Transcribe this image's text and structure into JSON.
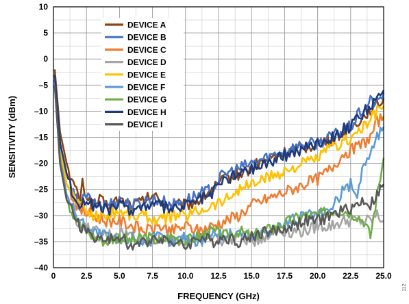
{
  "figure_id": "112",
  "chart_data": {
    "type": "line",
    "xlabel": "FREQUENCY (GHz)",
    "ylabel": "SENSITIVITY (dBm)",
    "xlim": [
      0,
      25
    ],
    "ylim": [
      -40,
      10
    ],
    "x_ticks": [
      "0",
      "2.5",
      "5.0",
      "7.5",
      "10.0",
      "12.5",
      "15.0",
      "17.5",
      "20.0",
      "22.5",
      "25.0"
    ],
    "y_ticks": [
      "10",
      "5",
      "0",
      "–5",
      "–10",
      "–15",
      "–20",
      "–25",
      "–30",
      "–35",
      "–40"
    ],
    "grid": true,
    "legend_position": "top-left",
    "series": [
      {
        "name": "DEVICE A",
        "color": "#8B4513",
        "x": [
          0.1,
          0.5,
          1.0,
          1.5,
          2.0,
          2.2,
          2.5,
          3.0,
          3.5,
          4.0,
          5.0,
          6.0,
          7.0,
          7.5,
          8.0,
          9.0,
          10.0,
          11.0,
          12.0,
          12.5,
          13.0,
          14.0,
          15.0,
          15.5,
          16.0,
          17.0,
          17.5,
          18.0,
          19.0,
          20.0,
          21.0,
          22.0,
          22.5,
          23.0,
          23.5,
          24.0,
          24.5,
          25.0
        ],
        "y": [
          -2,
          -14,
          -20,
          -24,
          -27,
          -24,
          -26,
          -28,
          -27,
          -28,
          -27,
          -28,
          -27,
          -26,
          -27,
          -28,
          -28,
          -27,
          -25,
          -24,
          -23,
          -22,
          -21,
          -20,
          -19.5,
          -18.5,
          -18,
          -17.5,
          -17,
          -16,
          -15.5,
          -14,
          -13.5,
          -12,
          -11,
          -9.5,
          -9,
          -7.5
        ]
      },
      {
        "name": "DEVICE B",
        "color": "#4472C4",
        "x": [
          0.1,
          0.5,
          1.0,
          1.5,
          2.0,
          2.5,
          3.0,
          4.0,
          5.0,
          6.0,
          7.0,
          8.0,
          9.0,
          10.0,
          11.0,
          12.0,
          12.5,
          13.0,
          14.0,
          15.0,
          16.0,
          17.0,
          17.5,
          18.0,
          19.0,
          20.0,
          21.0,
          22.0,
          22.5,
          23.0,
          24.0,
          24.5,
          25.0
        ],
        "y": [
          -3,
          -16,
          -22,
          -26,
          -28,
          -26,
          -28,
          -28,
          -27,
          -28,
          -27,
          -27,
          -28,
          -27,
          -26,
          -25,
          -23,
          -22,
          -21,
          -20,
          -19,
          -18,
          -17.5,
          -17,
          -16.5,
          -16,
          -15,
          -13.5,
          -13,
          -11,
          -8,
          -8.5,
          -6.5
        ]
      },
      {
        "name": "DEVICE C",
        "color": "#ED7D31",
        "x": [
          0.1,
          0.5,
          1.0,
          2.0,
          3.0,
          4.0,
          5.0,
          6.0,
          7.0,
          8.0,
          9.0,
          10.0,
          11.0,
          12.0,
          13.0,
          14.0,
          15.0,
          16.0,
          17.0,
          18.0,
          19.0,
          20.0,
          21.0,
          22.0,
          23.0,
          24.0,
          24.5,
          25.0
        ],
        "y": [
          -4,
          -18,
          -24,
          -29,
          -30,
          -31,
          -31,
          -32,
          -33,
          -32,
          -33,
          -32,
          -33,
          -32,
          -31,
          -30,
          -28,
          -27,
          -26,
          -25,
          -24,
          -23,
          -21,
          -18,
          -17,
          -15,
          -12,
          -11
        ]
      },
      {
        "name": "DEVICE D",
        "color": "#A5A5A5",
        "x": [
          0.1,
          0.5,
          1.0,
          2.0,
          3.0,
          4.0,
          5.0,
          6.0,
          7.0,
          8.0,
          9.0,
          10.0,
          11.0,
          12.0,
          13.0,
          14.0,
          15.0,
          16.0,
          17.0,
          18.0,
          19.0,
          20.0,
          21.0,
          22.0,
          23.0,
          24.0,
          24.5,
          25.0
        ],
        "y": [
          -5,
          -20,
          -27,
          -32,
          -33,
          -34,
          -33,
          -34,
          -35,
          -34,
          -35,
          -34,
          -35,
          -34,
          -35,
          -34,
          -35,
          -34,
          -33,
          -33,
          -33,
          -32,
          -32,
          -31,
          -31,
          -31,
          -30,
          -31
        ]
      },
      {
        "name": "DEVICE E",
        "color": "#FFC000",
        "x": [
          0.1,
          0.5,
          1.0,
          2.0,
          3.0,
          4.0,
          5.0,
          6.0,
          7.0,
          8.0,
          9.0,
          10.0,
          11.0,
          12.0,
          13.0,
          14.0,
          15.0,
          16.0,
          17.0,
          18.0,
          19.0,
          20.0,
          21.0,
          22.0,
          23.0,
          24.0,
          24.5,
          25.0
        ],
        "y": [
          -3,
          -17,
          -24,
          -28,
          -30,
          -30,
          -29,
          -30,
          -30,
          -31,
          -30,
          -30,
          -29,
          -28,
          -27,
          -25,
          -24,
          -23,
          -22,
          -21,
          -20,
          -19,
          -17,
          -16,
          -14,
          -12,
          -10,
          -9
        ]
      },
      {
        "name": "DEVICE F",
        "color": "#5B9BD5",
        "x": [
          0.1,
          0.5,
          1.0,
          2.0,
          3.0,
          4.0,
          5.0,
          6.0,
          7.0,
          8.0,
          9.0,
          10.0,
          11.0,
          12.0,
          13.0,
          14.0,
          15.0,
          16.0,
          17.0,
          18.0,
          19.0,
          20.0,
          21.0,
          22.0,
          22.5,
          23.0,
          23.5,
          24.0,
          24.5,
          25.0
        ],
        "y": [
          -4,
          -19,
          -26,
          -31,
          -33,
          -34,
          -35,
          -34,
          -35,
          -34,
          -35,
          -34,
          -35,
          -33,
          -34,
          -33,
          -34,
          -33,
          -32,
          -31,
          -30,
          -30,
          -29,
          -25,
          -24,
          -26,
          -20,
          -18,
          -15,
          -13
        ]
      },
      {
        "name": "DEVICE G",
        "color": "#70AD47",
        "x": [
          0.1,
          0.5,
          1.0,
          2.0,
          3.0,
          4.0,
          5.0,
          6.0,
          7.0,
          8.0,
          9.0,
          10.0,
          11.0,
          12.0,
          13.0,
          14.0,
          15.0,
          16.0,
          17.0,
          18.0,
          19.0,
          20.0,
          21.0,
          22.0,
          23.0,
          23.5,
          24.0,
          24.5,
          25.0
        ],
        "y": [
          -5,
          -20,
          -27,
          -32,
          -34,
          -35,
          -34,
          -35,
          -34,
          -35,
          -34,
          -35,
          -34,
          -33,
          -34,
          -33,
          -34,
          -33,
          -32,
          -31,
          -30,
          -30,
          -29,
          -29,
          -30,
          -31,
          -34,
          -26,
          -19
        ]
      },
      {
        "name": "DEVICE H",
        "color": "#1F3A7A",
        "x": [
          0.1,
          0.5,
          1.0,
          1.5,
          2.0,
          2.5,
          3.0,
          4.0,
          5.0,
          6.0,
          7.0,
          8.0,
          9.0,
          10.0,
          11.0,
          12.0,
          12.5,
          13.0,
          14.0,
          15.0,
          16.0,
          17.0,
          18.0,
          19.0,
          20.0,
          21.0,
          22.0,
          22.5,
          23.0,
          24.0,
          24.5,
          25.0
        ],
        "y": [
          -3,
          -16,
          -22,
          -26,
          -28,
          -27,
          -28,
          -29,
          -28,
          -29,
          -28,
          -28,
          -29,
          -28,
          -27,
          -26,
          -24,
          -23,
          -22,
          -21,
          -20,
          -19,
          -18,
          -17,
          -16,
          -15,
          -13.5,
          -13,
          -11.5,
          -9,
          -8,
          -6
        ]
      },
      {
        "name": "DEVICE I",
        "color": "#595959",
        "x": [
          0.1,
          0.5,
          1.0,
          2.0,
          3.0,
          4.0,
          5.0,
          6.0,
          7.0,
          8.0,
          9.0,
          10.0,
          11.0,
          12.0,
          13.0,
          14.0,
          15.0,
          16.0,
          17.0,
          18.0,
          19.0,
          20.0,
          21.0,
          22.0,
          23.0,
          23.5,
          24.0,
          24.5,
          25.0
        ],
        "y": [
          -5,
          -20,
          -27,
          -32,
          -34,
          -35,
          -34,
          -36,
          -35,
          -34,
          -35,
          -36,
          -34,
          -35,
          -34,
          -35,
          -34,
          -33,
          -33,
          -32,
          -31,
          -31,
          -30,
          -29,
          -28,
          -27,
          -28,
          -26,
          -24
        ]
      }
    ]
  }
}
